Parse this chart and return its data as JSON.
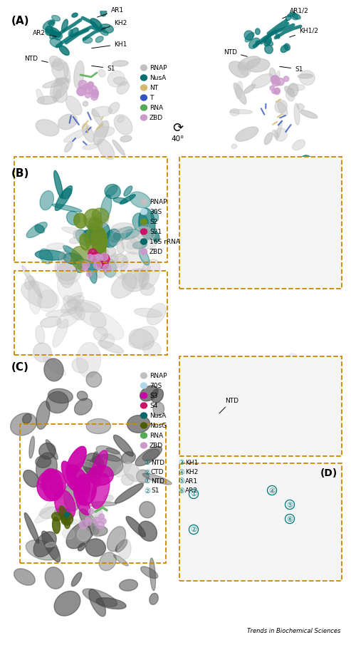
{
  "panel_A_label": "(A)",
  "panel_B_label": "(B)",
  "panel_C_label": "(C)",
  "panel_D_label": "(D)",
  "footer": "Trends in Biochemical Sciences",
  "bg_color": "#ffffff",
  "colors": {
    "RNAP": "#c0c0c0",
    "NusA": "#007070",
    "NT": "#d4b96a",
    "T": "#3355bb",
    "RNA": "#55aa55",
    "ZBD": "#cc99cc",
    "30S": "#b0d8e8",
    "S2": "#6b8e23",
    "S21": "#cc1166",
    "16S_rRNA": "#006868",
    "70S": "#b0d8e8",
    "S3": "#cc00aa",
    "S4": "#cc1166",
    "NusG": "#4a5e00",
    "teal_circ": "#007878",
    "orange_box": "#cc8800",
    "dark_gray": "#404040",
    "mid_gray": "#888888",
    "light_gray": "#c8c8c8",
    "cyan_light": "#b8dde8",
    "blue_line": "#3355bb",
    "gold_line": "#d4b96a"
  },
  "panelA": {
    "legend": [
      {
        "label": "RNAP",
        "color": "#c0c0c0"
      },
      {
        "label": "NusA",
        "color": "#007070"
      },
      {
        "label": "NT",
        "color": "#d4b96a"
      },
      {
        "label": "T",
        "color": "#3355bb"
      },
      {
        "label": "RNA",
        "color": "#55aa55"
      },
      {
        "label": "ZBD",
        "color": "#cc99cc"
      }
    ],
    "ann_left": [
      [
        "AR1",
        115,
        858
      ],
      [
        "KH2",
        118,
        840
      ],
      [
        "AR2",
        52,
        832
      ],
      [
        "KH1",
        113,
        820
      ],
      [
        "NTD",
        42,
        808
      ],
      [
        "S1",
        108,
        804
      ]
    ],
    "ann_right": [
      [
        "AR1/2",
        360,
        860
      ],
      [
        "KH1/2",
        385,
        843
      ],
      [
        "NTD",
        305,
        820
      ],
      [
        "S1",
        372,
        808
      ]
    ],
    "rot_text": "40°"
  },
  "panelB": {
    "legend": [
      {
        "label": "RNAP",
        "color": "#c0c0c0"
      },
      {
        "label": "30S",
        "color": "#b0d8e8"
      },
      {
        "label": "S2",
        "color": "#6b8e23"
      },
      {
        "label": "S21",
        "color": "#cc1166"
      },
      {
        "label": "16S rRNA",
        "color": "#006868"
      },
      {
        "label": "ZBD",
        "color": "#cc99cc"
      }
    ]
  },
  "panelC": {
    "legend": [
      {
        "label": "RNAP",
        "color": "#c0c0c0"
      },
      {
        "label": "70S",
        "color": "#b0d8e8"
      },
      {
        "label": "S3",
        "color": "#cc00aa"
      },
      {
        "label": "S4",
        "color": "#cc1166"
      },
      {
        "label": "NusA",
        "color": "#006868"
      },
      {
        "label": "NusG",
        "color": "#4a5e00"
      },
      {
        "label": "RNA",
        "color": "#55aa55"
      },
      {
        "label": "ZBD",
        "color": "#cc99cc"
      }
    ],
    "num_legend": [
      [
        1,
        "NTD",
        3,
        "KH1"
      ],
      [
        2,
        "CTD",
        4,
        "KH2"
      ],
      [
        1,
        "NTD",
        5,
        "AR1"
      ],
      [
        2,
        "S1",
        6,
        "AR2"
      ]
    ]
  }
}
